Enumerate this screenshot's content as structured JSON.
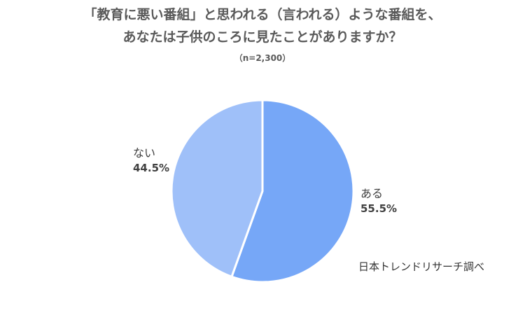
{
  "chart_data": {
    "type": "pie",
    "title_line1": "「教育に悪い番組」と思われる（言われる）ような番組を、",
    "title_line2": "あなたは子供のころに見たことがありますか？",
    "subtitle": "（n=2,300）",
    "slices": [
      {
        "label": "ある",
        "value": 55.5,
        "display": "55.5%",
        "color": "#76a7f7"
      },
      {
        "label": "ない",
        "value": 44.5,
        "display": "44.5%",
        "color": "#9fc0f9"
      }
    ],
    "start": "12 o'clock",
    "direction": "clockwise",
    "source": "日本トレンドリサーチ調べ"
  }
}
